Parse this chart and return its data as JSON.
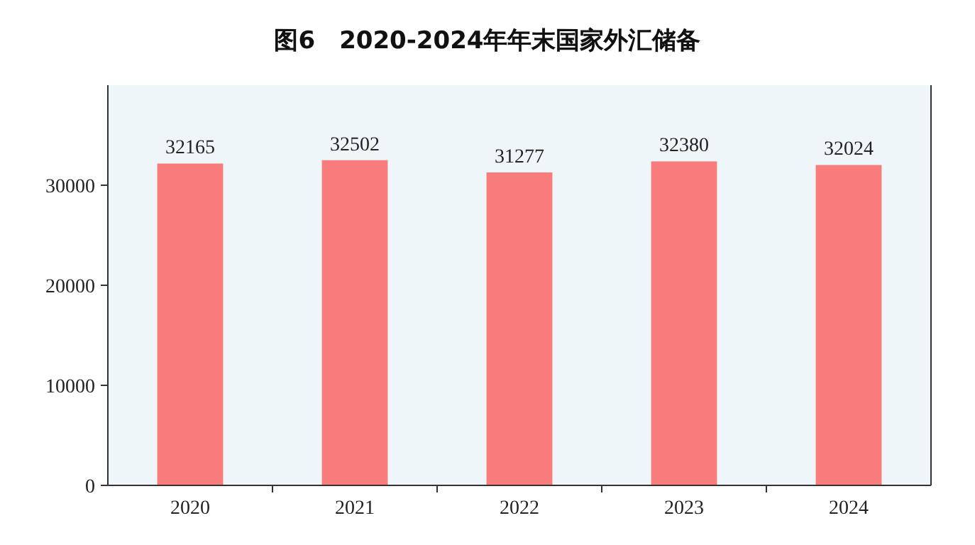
{
  "chart_data": {
    "type": "bar",
    "title": "图6　2020-2024年年末国家外汇储备",
    "categories": [
      "2020",
      "2021",
      "2022",
      "2023",
      "2024"
    ],
    "values": [
      32165,
      32502,
      31277,
      32380,
      32024
    ],
    "color": "#f97c7c",
    "ylim": [
      0,
      40000
    ],
    "yticks": [
      0,
      10000,
      20000,
      30000
    ],
    "data_labels": true,
    "grid": false
  }
}
